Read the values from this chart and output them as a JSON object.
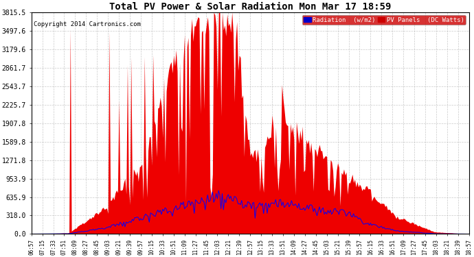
{
  "title": "Total PV Power & Solar Radiation Mon Mar 17 18:59",
  "copyright": "Copyright 2014 Cartronics.com",
  "yticks": [
    0.0,
    318.0,
    635.9,
    953.9,
    1271.8,
    1589.8,
    1907.8,
    2225.7,
    2543.7,
    2861.7,
    3179.6,
    3497.6,
    3815.5
  ],
  "ymax": 3815.5,
  "legend_radiation_label": "Radiation  (w/m2)",
  "legend_pv_label": "PV Panels  (DC Watts)",
  "radiation_line_color": "#0000ff",
  "pv_fill_color": "#ee0000",
  "background_color": "#ffffff",
  "grid_color": "#bbbbbb",
  "xtick_labels": [
    "06:57",
    "07:15",
    "07:33",
    "07:51",
    "08:09",
    "08:27",
    "08:45",
    "09:03",
    "09:21",
    "09:39",
    "09:57",
    "10:15",
    "10:33",
    "10:51",
    "11:09",
    "11:27",
    "11:45",
    "12:03",
    "12:21",
    "12:39",
    "12:57",
    "13:15",
    "13:33",
    "13:51",
    "14:09",
    "14:27",
    "14:45",
    "15:03",
    "15:21",
    "15:39",
    "15:57",
    "16:15",
    "16:33",
    "16:51",
    "17:09",
    "17:27",
    "17:45",
    "18:03",
    "18:21",
    "18:39",
    "18:57"
  ]
}
